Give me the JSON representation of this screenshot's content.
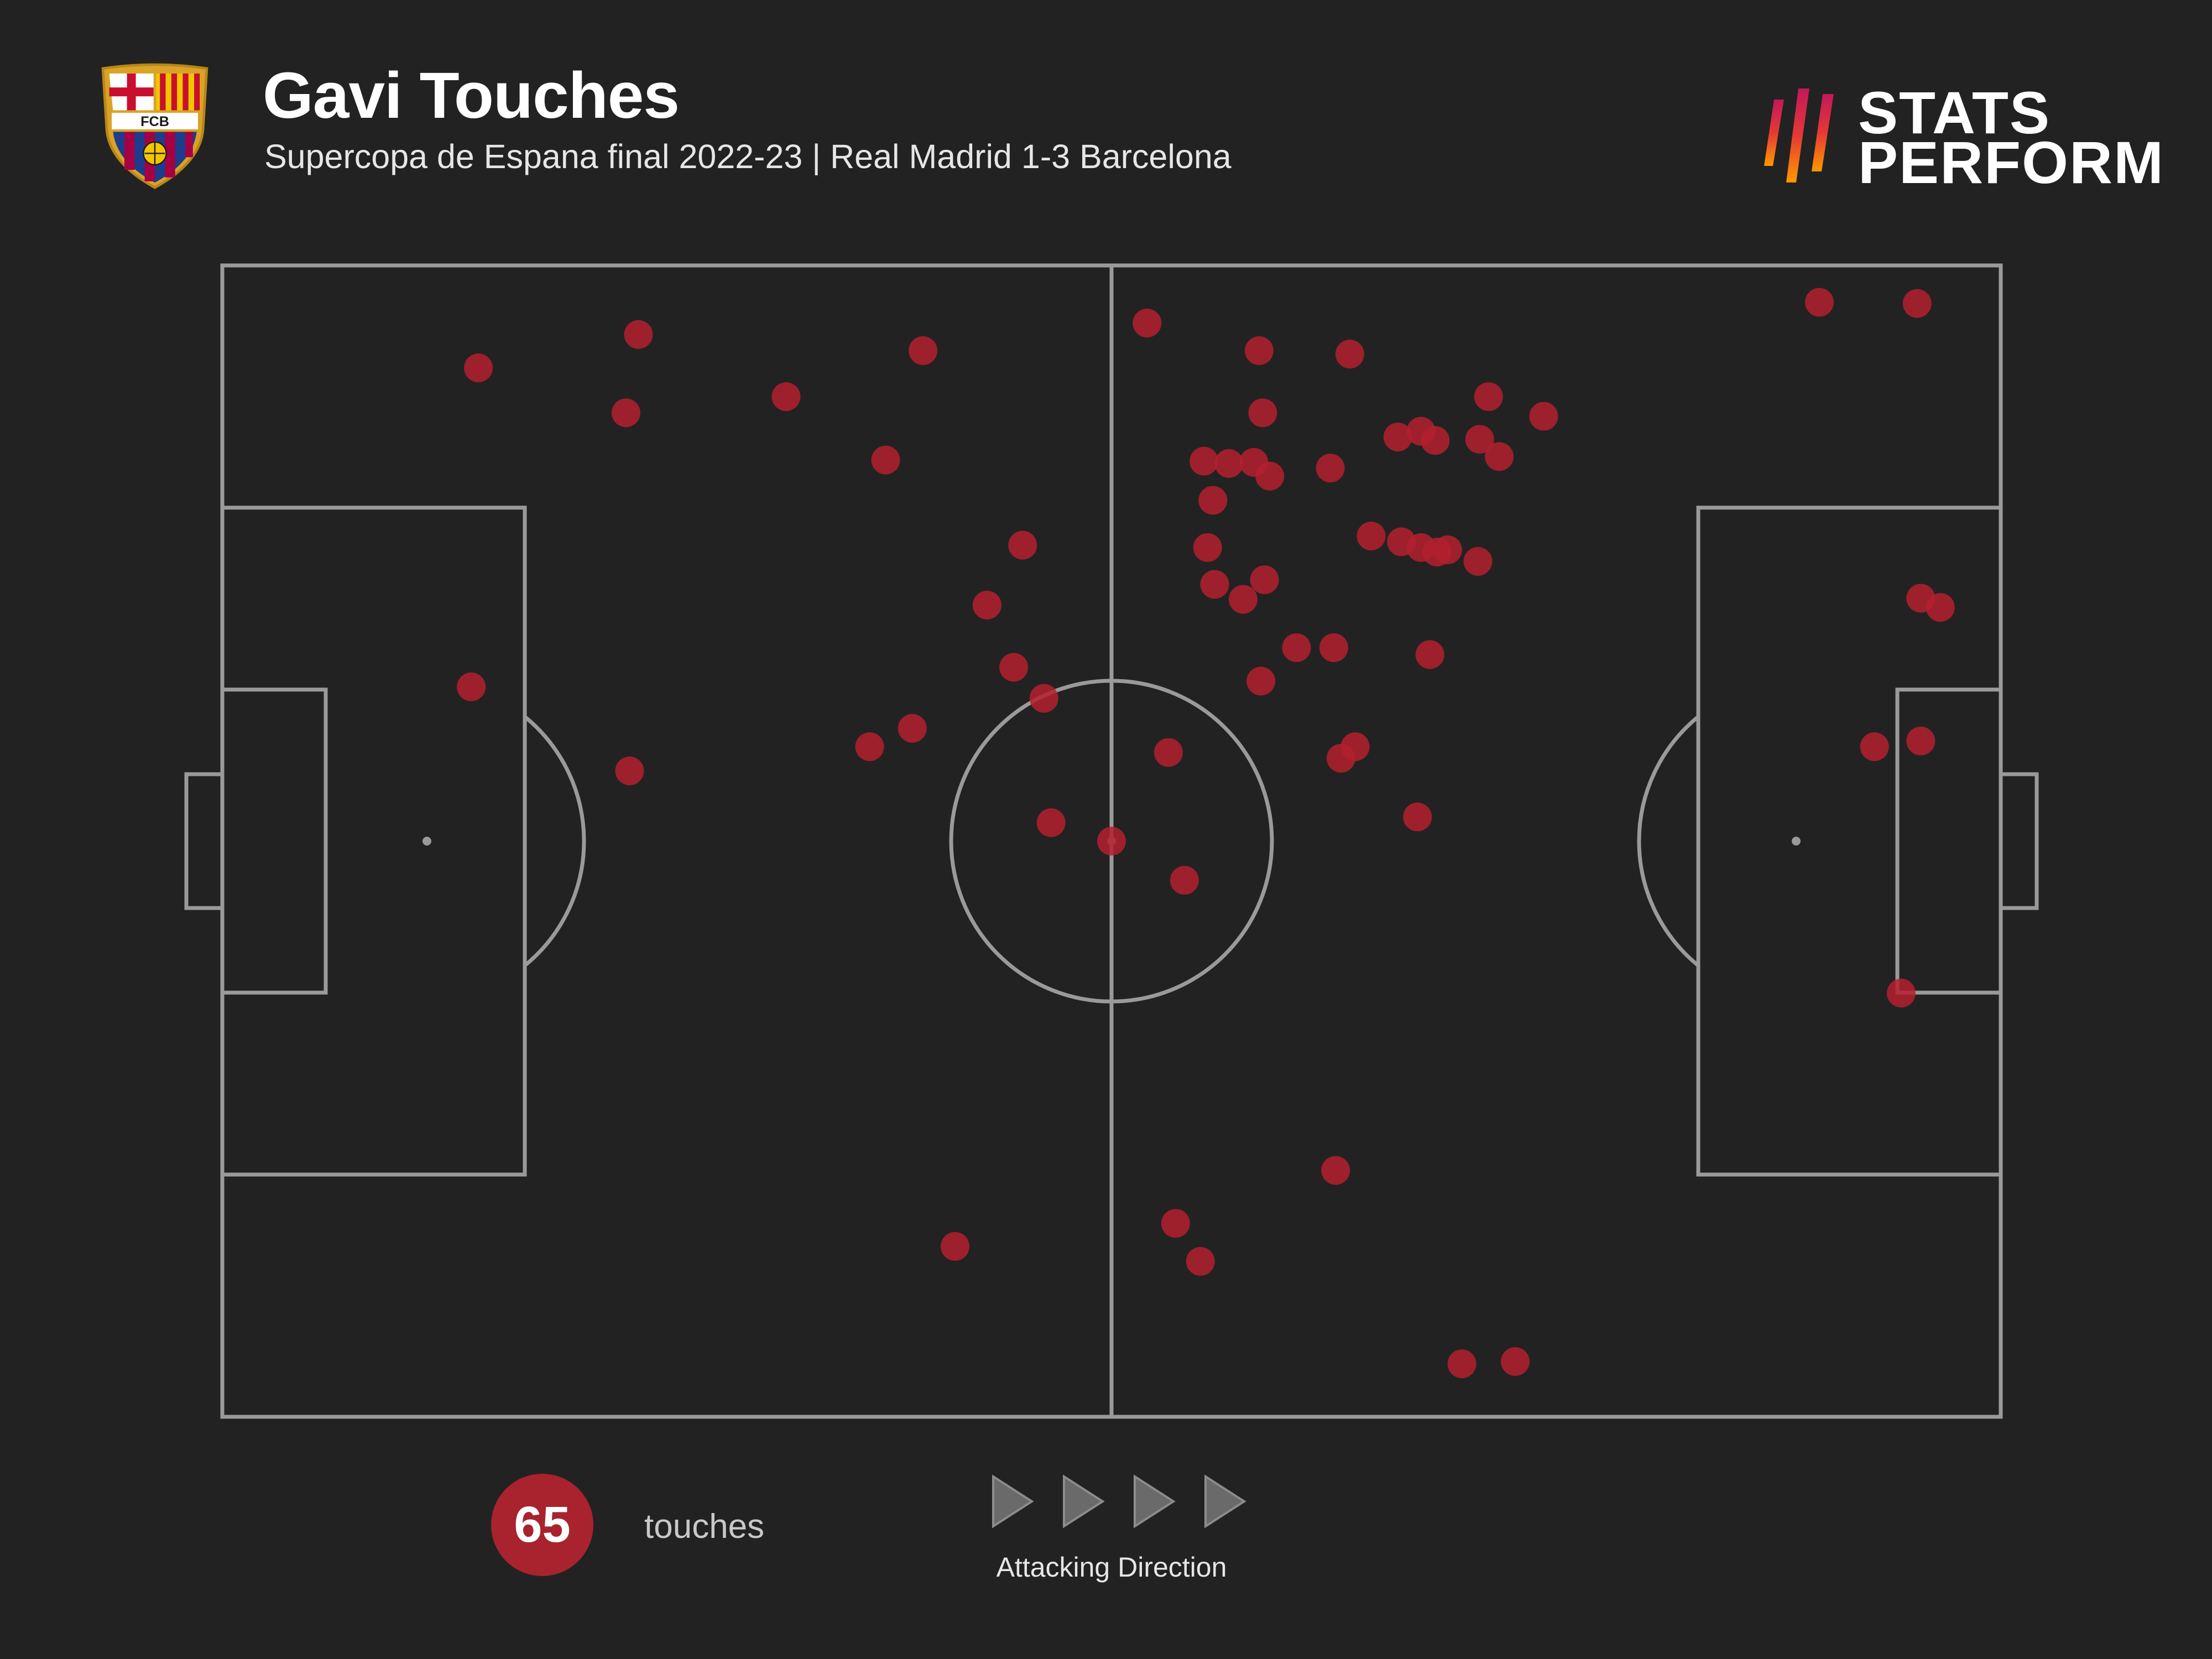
{
  "header": {
    "title": "Gavi Touches",
    "subtitle": "Supercopa de Espana final 2022-23 | Real Madrid 1-3 Barcelona",
    "crest_text": "FCB",
    "brand_line1": "STATS",
    "brand_line2": "PERFORM"
  },
  "summary": {
    "count": "65",
    "count_label": "touches",
    "direction_label": "Attacking Direction"
  },
  "colors": {
    "background": "#222222",
    "pitch_lines": "#9a9a9a",
    "touch_marker": "#b3202e",
    "count_circle": "#a8232e"
  },
  "chart_data": {
    "type": "scatter",
    "title": "Gavi Touches",
    "subtitle": "Supercopa de Espana final 2022-23 | Real Madrid 1-3 Barcelona",
    "xlabel": "",
    "ylabel": "",
    "xlim": [
      0,
      100
    ],
    "ylim": [
      0,
      100
    ],
    "grid": false,
    "attacking_direction": "left-to-right",
    "series": [
      {
        "values": [
          [
            14.4,
            91.1
          ],
          [
            23.4,
            94.0
          ],
          [
            22.7,
            87.2
          ],
          [
            31.7,
            88.6
          ],
          [
            39.4,
            92.6
          ],
          [
            37.3,
            83.1
          ],
          [
            14.0,
            63.4
          ],
          [
            22.9,
            56.1
          ],
          [
            45.0,
            75.7
          ],
          [
            43.0,
            70.5
          ],
          [
            44.5,
            65.1
          ],
          [
            46.2,
            62.4
          ],
          [
            38.8,
            59.8
          ],
          [
            46.6,
            51.6
          ],
          [
            50.0,
            50.0
          ],
          [
            52.0,
            95.0
          ],
          [
            58.3,
            92.6
          ],
          [
            63.4,
            92.3
          ],
          [
            58.5,
            87.2
          ],
          [
            55.2,
            83.0
          ],
          [
            56.6,
            82.8
          ],
          [
            58.0,
            82.9
          ],
          [
            58.9,
            81.7
          ],
          [
            55.7,
            79.6
          ],
          [
            62.3,
            82.4
          ],
          [
            66.1,
            85.1
          ],
          [
            67.4,
            85.6
          ],
          [
            68.2,
            84.8
          ],
          [
            71.2,
            88.6
          ],
          [
            70.7,
            84.9
          ],
          [
            71.8,
            83.4
          ],
          [
            74.3,
            86.9
          ],
          [
            55.4,
            75.5
          ],
          [
            55.8,
            72.3
          ],
          [
            57.4,
            71.0
          ],
          [
            58.6,
            72.7
          ],
          [
            64.6,
            76.5
          ],
          [
            66.3,
            76.0
          ],
          [
            67.4,
            75.5
          ],
          [
            68.3,
            75.1
          ],
          [
            68.9,
            75.3
          ],
          [
            70.6,
            74.3
          ],
          [
            60.4,
            66.8
          ],
          [
            62.5,
            66.8
          ],
          [
            58.4,
            63.9
          ],
          [
            67.9,
            66.2
          ],
          [
            53.2,
            57.7
          ],
          [
            63.7,
            58.2
          ],
          [
            62.9,
            57.2
          ],
          [
            54.1,
            46.6
          ],
          [
            67.2,
            52.1
          ],
          [
            95.3,
            96.7
          ],
          [
            89.8,
            96.8
          ],
          [
            95.5,
            71.1
          ],
          [
            96.6,
            70.3
          ],
          [
            92.9,
            58.2
          ],
          [
            95.5,
            58.7
          ],
          [
            94.4,
            36.8
          ],
          [
            62.6,
            21.4
          ],
          [
            53.6,
            16.8
          ],
          [
            41.2,
            14.8
          ],
          [
            55.0,
            13.5
          ],
          [
            72.7,
            4.8
          ],
          [
            69.7,
            4.6
          ],
          [
            36.4,
            58.2
          ]
        ]
      }
    ]
  }
}
